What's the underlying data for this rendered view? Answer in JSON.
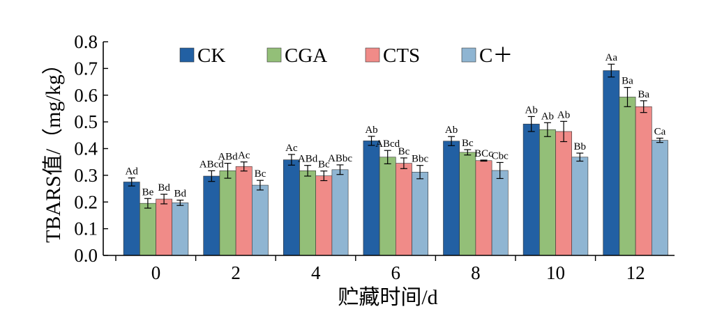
{
  "chart_data": {
    "type": "bar",
    "title": "",
    "xlabel": "贮藏时间/d",
    "ylabel": "TBARS值/（mg/kg）",
    "ylim": [
      0,
      0.8
    ],
    "yticks": [
      "0.0",
      "0.1",
      "0.2",
      "0.3",
      "0.4",
      "0.5",
      "0.6",
      "0.7",
      "0.8"
    ],
    "categories": [
      "0",
      "2",
      "4",
      "6",
      "8",
      "10",
      "12"
    ],
    "legend_position": "top",
    "grid": false,
    "series": [
      {
        "name": "CK",
        "color": "#2260a3",
        "values": [
          0.275,
          0.297,
          0.358,
          0.429,
          0.428,
          0.492,
          0.692
        ],
        "errors": [
          0.015,
          0.02,
          0.02,
          0.017,
          0.017,
          0.028,
          0.024
        ],
        "labels": [
          "Ad",
          "ABcd",
          "Ac",
          "Ab",
          "Ab",
          "Ab",
          "Aa"
        ]
      },
      {
        "name": "CGA",
        "color": "#93bf78",
        "values": [
          0.195,
          0.317,
          0.317,
          0.368,
          0.386,
          0.471,
          0.593
        ],
        "errors": [
          0.018,
          0.028,
          0.02,
          0.025,
          0.01,
          0.026,
          0.036
        ],
        "labels": [
          "Be",
          "ABd",
          "ABd",
          "ABcd",
          "Bc",
          "Ab",
          "Ba"
        ]
      },
      {
        "name": "CTS",
        "color": "#f08b88",
        "values": [
          0.211,
          0.333,
          0.298,
          0.345,
          0.355,
          0.464,
          0.557
        ],
        "errors": [
          0.018,
          0.017,
          0.018,
          0.02,
          0.002,
          0.038,
          0.022
        ],
        "labels": [
          "Bd",
          "Ac",
          "Bc",
          "Bc",
          "BCc",
          "Ab",
          "Ba"
        ]
      },
      {
        "name": "C＋",
        "color": "#8fb5d2",
        "values": [
          0.197,
          0.263,
          0.321,
          0.312,
          0.318,
          0.368,
          0.431
        ],
        "errors": [
          0.01,
          0.018,
          0.018,
          0.025,
          0.03,
          0.015,
          0.008
        ],
        "labels": [
          "Bd",
          "Bc",
          "ABbc",
          "Bbc",
          "Cbc",
          "Bb",
          "Ca"
        ]
      }
    ]
  }
}
